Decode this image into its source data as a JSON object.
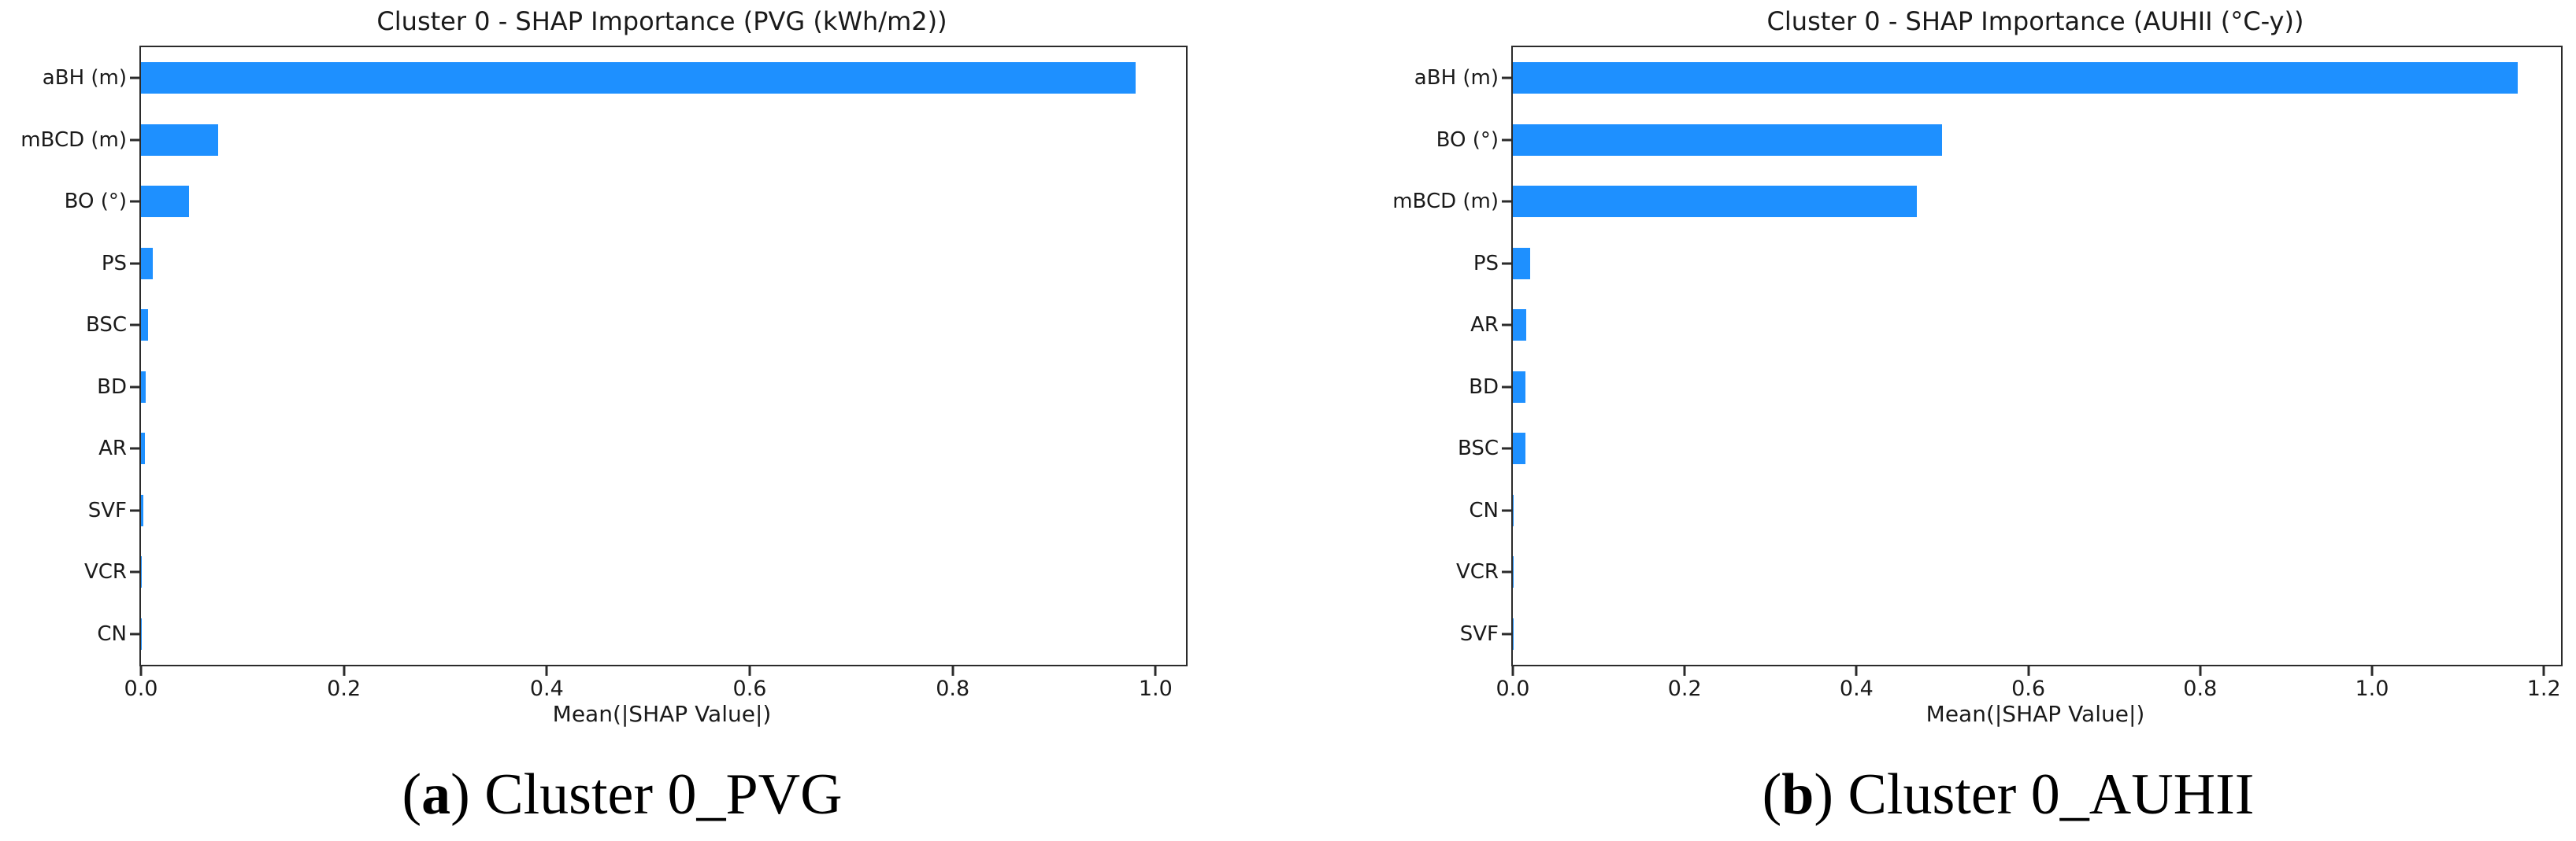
{
  "figure": {
    "bar_color": "#1E90FF",
    "axis_color": "#2b2b2b",
    "text_color": "#1a1a1a"
  },
  "captions": [
    {
      "prefix": "(",
      "marker": "a",
      "suffix": ") Cluster 0_PVG"
    },
    {
      "prefix": "(",
      "marker": "b",
      "suffix": ") Cluster 0_AUHII"
    }
  ],
  "chart_data": [
    {
      "type": "bar",
      "orientation": "horizontal",
      "title": "Cluster 0 - SHAP Importance (PVG (kWh/m2))",
      "xlabel": "Mean(|SHAP Value|)",
      "categories": [
        "aBH (m)",
        "mBCD (m)",
        "BO (°)",
        "PS",
        "BSC",
        "BD",
        "AR",
        "SVF",
        "VCR",
        "CN"
      ],
      "values": [
        0.98,
        0.076,
        0.047,
        0.012,
        0.007,
        0.005,
        0.004,
        0.002,
        0.001,
        0.001
      ],
      "xlim": [
        0,
        1.03
      ],
      "xticks": [
        0.0,
        0.2,
        0.4,
        0.6,
        0.8,
        1.0
      ],
      "grid": false,
      "legend": null,
      "bar_color": "#1E90FF"
    },
    {
      "type": "bar",
      "orientation": "horizontal",
      "title": "Cluster 0 - SHAP Importance (AUHII (°C-y))",
      "xlabel": "Mean(|SHAP Value|)",
      "categories": [
        "aBH (m)",
        "BO (°)",
        "mBCD (m)",
        "PS",
        "AR",
        "BD",
        "BSC",
        "CN",
        "VCR",
        "SVF"
      ],
      "values": [
        1.17,
        0.5,
        0.47,
        0.02,
        0.016,
        0.015,
        0.015,
        0.001,
        0.001,
        0.001
      ],
      "xlim": [
        0,
        1.22
      ],
      "xticks": [
        0.0,
        0.2,
        0.4,
        0.6,
        0.8,
        1.0,
        1.2
      ],
      "grid": false,
      "legend": null,
      "bar_color": "#1E90FF"
    }
  ]
}
